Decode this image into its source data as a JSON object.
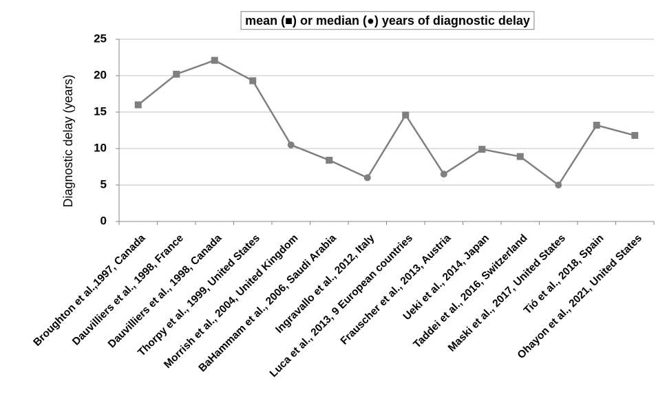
{
  "chart_data": {
    "type": "line",
    "title": "mean (■) or median (●) years of diagnostic delay",
    "y_label": "Diagnostic delay (years)",
    "categories": [
      "Broughton et al.,1997, Canada",
      "Dauvilliers et al., 1998, France",
      "Dauvilliers et al., 1998, Canada",
      "Thorpy et al., 1999, United States",
      "Morrish et al., 2004, United Kingdom",
      "BaHammam et al., 2006, Saudi Arabia",
      "Ingravallo et al., 2012, Italy",
      "Luca et al., 2013, 9 European countries",
      "Frauscher et al., 2013, Austria",
      "Ueki et al., 2014, Japan",
      "Taddei et al., 2016, Switzerland",
      "Maski et al., 2017, United States",
      "Tió  et al., 2018, Spain",
      "Ohayon et al., 2021, United States"
    ],
    "values": [
      16,
      20.2,
      22.1,
      19.3,
      10.5,
      8.4,
      6,
      14.6,
      6.5,
      9.9,
      8.9,
      5,
      13.2,
      11.8
    ],
    "markers": [
      "square",
      "square",
      "square",
      "square",
      "circle",
      "square",
      "circle",
      "square",
      "circle",
      "square",
      "square",
      "circle",
      "square",
      "square"
    ],
    "color": "#7f7f7f",
    "ylim": [
      0,
      25
    ],
    "yticks": [
      0,
      5,
      10,
      15,
      20,
      25
    ],
    "grid": true
  }
}
